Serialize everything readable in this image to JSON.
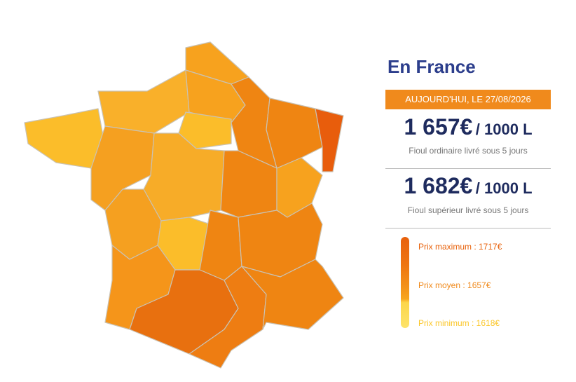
{
  "panel": {
    "title": "En France",
    "date_banner": "AUJOURD'HUI, LE 27/08/2026",
    "prices": [
      {
        "price": "1 657€",
        "unit": "/ 1000 L",
        "description": "Fioul ordinaire livré sous 5 jours"
      },
      {
        "price": "1 682€",
        "unit": "/ 1000 L",
        "description": "Fioul supérieur livré sous 5 jours"
      }
    ],
    "legend": [
      "Prix maximum : 1717€",
      "Prix moyen : 1657€",
      "Prix minimum : 1618€"
    ]
  }
}
